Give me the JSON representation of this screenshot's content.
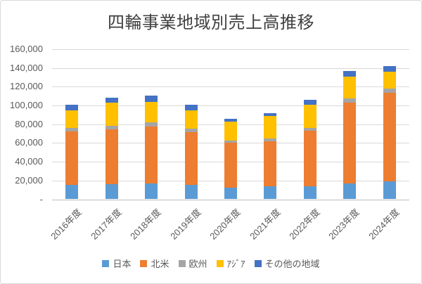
{
  "chart": {
    "title": "四輪事業地域別売上高推移"
  },
  "chart_data": {
    "type": "bar",
    "stacked": true,
    "title": "四輪事業地域別売上高推移",
    "xlabel": "",
    "ylabel": "",
    "categories": [
      "2016年度",
      "2017年度",
      "2018年度",
      "2019年度",
      "2020年度",
      "2021年度",
      "2022年度",
      "2023年度",
      "2024年度"
    ],
    "series": [
      {
        "name": "日本",
        "key": "japan",
        "color": "#5B9BD5",
        "values": [
          15500,
          16000,
          16500,
          15500,
          12500,
          13500,
          14000,
          16500,
          19000
        ]
      },
      {
        "name": "北米",
        "key": "north-america",
        "color": "#ED7D31",
        "values": [
          56500,
          58500,
          61000,
          56000,
          47500,
          48000,
          59000,
          86500,
          94500
        ]
      },
      {
        "name": "欧州",
        "key": "europe",
        "color": "#A5A5A5",
        "values": [
          4000,
          4000,
          4500,
          3500,
          2500,
          3000,
          3000,
          4500,
          4500
        ]
      },
      {
        "name": "ｱｼﾞｱ",
        "key": "asia",
        "color": "#FFC000",
        "values": [
          19000,
          24500,
          22000,
          20000,
          20000,
          24000,
          25000,
          23000,
          18000
        ]
      },
      {
        "name": "その他の地域",
        "key": "other-regions",
        "color": "#4472C4",
        "values": [
          5500,
          5500,
          6500,
          5500,
          3500,
          3500,
          5000,
          6000,
          6000
        ]
      }
    ],
    "totals": [
      100500,
      108500,
      110500,
      100500,
      86000,
      92000,
      106000,
      136500,
      142000
    ],
    "ylim": [
      0,
      160000
    ],
    "ytick_step": 20000,
    "ytick_labels": [
      "160,000",
      "140,000",
      "120,000",
      "100,000",
      "80,000",
      "60,000",
      "40,000",
      "20,000",
      "-"
    ],
    "grid": true,
    "legend_position": "bottom",
    "x_label_rotation_deg": -45
  }
}
